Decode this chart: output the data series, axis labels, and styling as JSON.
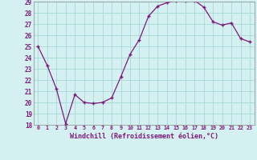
{
  "x": [
    0,
    1,
    2,
    3,
    4,
    5,
    6,
    7,
    8,
    9,
    10,
    11,
    12,
    13,
    14,
    15,
    16,
    17,
    18,
    19,
    20,
    21,
    22,
    23
  ],
  "y": [
    25.0,
    23.3,
    21.2,
    18.1,
    20.7,
    20.0,
    19.9,
    20.0,
    20.4,
    22.3,
    24.3,
    25.6,
    27.7,
    28.6,
    28.9,
    29.1,
    29.1,
    29.1,
    28.5,
    27.2,
    26.9,
    27.1,
    25.7,
    25.4
  ],
  "ylim": [
    18,
    29
  ],
  "yticks": [
    18,
    19,
    20,
    21,
    22,
    23,
    24,
    25,
    26,
    27,
    28,
    29
  ],
  "xtick_labels": [
    "0",
    "1",
    "2",
    "3",
    "4",
    "5",
    "6",
    "7",
    "8",
    "9",
    "10",
    "11",
    "12",
    "13",
    "14",
    "15",
    "16",
    "17",
    "18",
    "19",
    "20",
    "21",
    "22",
    "23"
  ],
  "line_color": "#7b1a7b",
  "marker": "+",
  "bg_color": "#d4f0f0",
  "grid_color": "#a8d8d8",
  "xlabel": "Windchill (Refroidissement éolien,°C)",
  "xlabel_color": "#7b1a7b"
}
